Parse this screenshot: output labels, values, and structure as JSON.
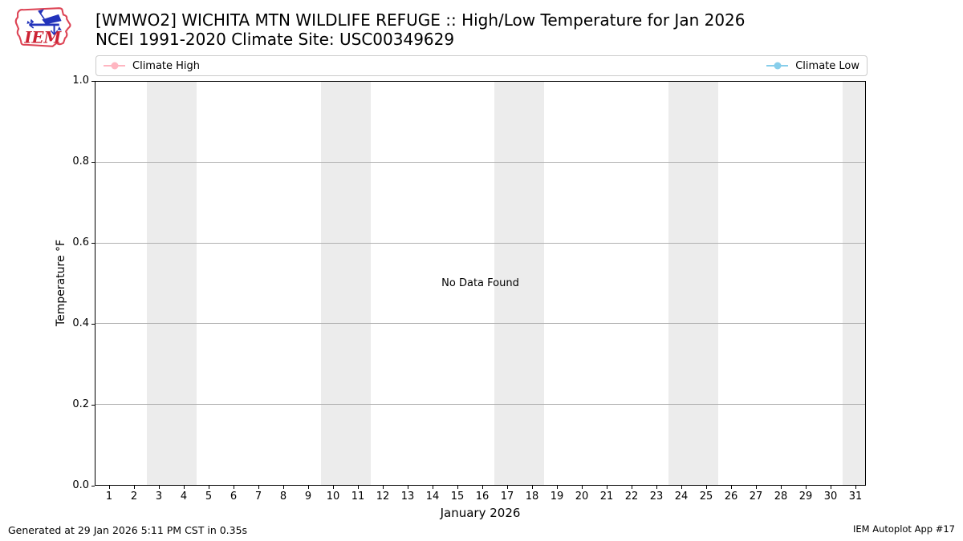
{
  "header": {
    "title": "[WMWO2] WICHITA MTN WILDLIFE REFUGE :: High/Low Temperature for Jan 2026",
    "subtitle": "NCEI 1991-2020 Climate Site: USC00349629",
    "logo_text": "IEM"
  },
  "legend": {
    "items": [
      {
        "label": "Climate High",
        "color": "#ffb6c1"
      },
      {
        "label": "Climate Low",
        "color": "#87ceeb"
      }
    ]
  },
  "chart_data": {
    "type": "line",
    "title": "[WMWO2] WICHITA MTN WILDLIFE REFUGE :: High/Low Temperature for Jan 2026",
    "subtitle": "NCEI 1991-2020 Climate Site: USC00349629",
    "xlabel": "January 2026",
    "ylabel": "Temperature °F",
    "no_data_text": "No Data Found",
    "xlim": [
      0.42,
      31.42
    ],
    "ylim": [
      0.0,
      1.0
    ],
    "xticks": [
      1,
      2,
      3,
      4,
      5,
      6,
      7,
      8,
      9,
      10,
      11,
      12,
      13,
      14,
      15,
      16,
      17,
      18,
      19,
      20,
      21,
      22,
      23,
      24,
      25,
      26,
      27,
      28,
      29,
      30,
      31
    ],
    "ytick_values": [
      0.0,
      0.2,
      0.4,
      0.6,
      0.8,
      1.0
    ],
    "ytick_labels": [
      "0.0",
      "0.2",
      "0.4",
      "0.6",
      "0.8",
      "1.0"
    ],
    "grid": "horizontal",
    "grid_color": "#b0b0b0",
    "weekend_bands": [
      [
        2.5,
        4.5
      ],
      [
        9.5,
        11.5
      ],
      [
        16.5,
        18.5
      ],
      [
        23.5,
        25.5
      ],
      [
        30.5,
        31.42
      ]
    ],
    "band_color": "#ececec",
    "series": [
      {
        "name": "Climate High",
        "color": "#ffb6c1",
        "values": []
      },
      {
        "name": "Climate Low",
        "color": "#87ceeb",
        "values": []
      }
    ]
  },
  "footer": {
    "generated": "Generated at 29 Jan 2026 5:11 PM CST in 0.35s",
    "app": "IEM Autoplot App #17"
  }
}
